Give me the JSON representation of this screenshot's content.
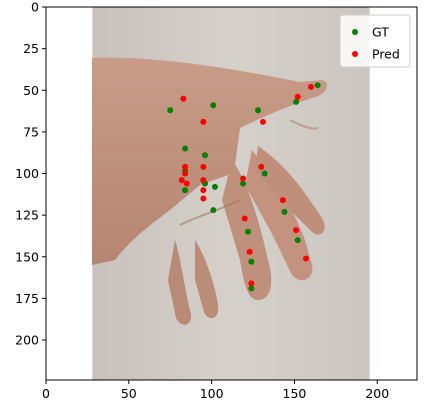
{
  "chart_data": {
    "type": "scatter",
    "title": "",
    "xlabel": "",
    "ylabel": "",
    "xlim": [
      0,
      224
    ],
    "ylim": [
      224,
      0
    ],
    "y_inverted": true,
    "image_x_extent": [
      28,
      195
    ],
    "x_ticks": [
      0,
      50,
      100,
      150,
      200
    ],
    "y_ticks": [
      0,
      25,
      50,
      75,
      100,
      125,
      150,
      175,
      200
    ],
    "legend_position": "top-right",
    "series": [
      {
        "name": "GT",
        "color": "#008000",
        "points": [
          [
            164,
            47
          ],
          [
            151,
            57
          ],
          [
            128,
            62
          ],
          [
            101,
            59
          ],
          [
            75,
            62
          ],
          [
            84,
            85
          ],
          [
            84,
            98
          ],
          [
            84,
            110
          ],
          [
            96,
            89
          ],
          [
            96,
            106
          ],
          [
            101,
            122
          ],
          [
            102,
            108
          ],
          [
            119,
            106
          ],
          [
            132,
            100
          ],
          [
            144,
            123
          ],
          [
            152,
            140
          ],
          [
            122,
            135
          ],
          [
            124,
            153
          ],
          [
            124,
            169
          ]
        ]
      },
      {
        "name": "Pred",
        "color": "#ff0000",
        "points": [
          [
            160,
            48
          ],
          [
            152,
            54
          ],
          [
            131,
            69
          ],
          [
            95,
            69
          ],
          [
            83,
            55
          ],
          [
            82,
            104
          ],
          [
            84,
            96
          ],
          [
            84,
            100
          ],
          [
            85,
            106
          ],
          [
            95,
            96
          ],
          [
            95,
            104
          ],
          [
            95,
            110
          ],
          [
            95,
            115
          ],
          [
            119,
            103
          ],
          [
            130,
            96
          ],
          [
            143,
            116
          ],
          [
            151,
            134
          ],
          [
            157,
            151
          ],
          [
            120,
            127
          ],
          [
            123,
            147
          ],
          [
            124,
            166
          ]
        ]
      }
    ]
  }
}
